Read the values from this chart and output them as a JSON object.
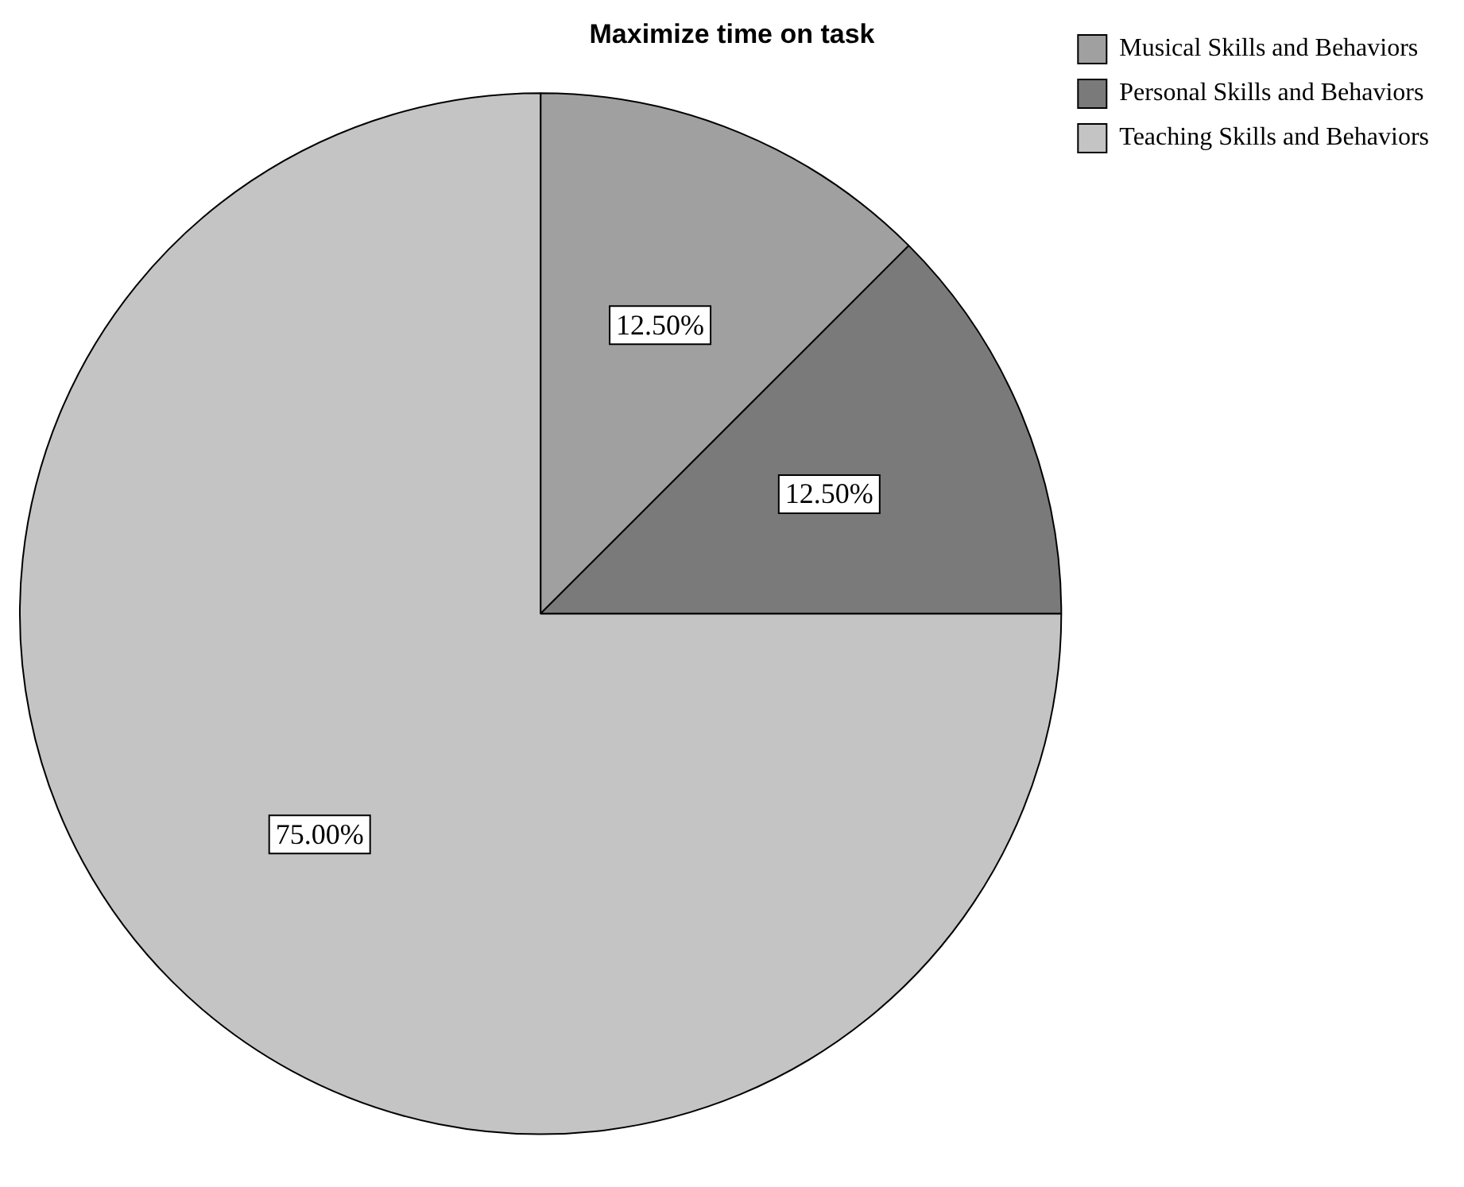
{
  "chart_data": {
    "type": "pie",
    "title": "Maximize time on task",
    "categories": [
      "Musical Skills and Behaviors",
      "Personal Skills and Behaviors",
      "Teaching Skills and Behaviors"
    ],
    "values": [
      12.5,
      12.5,
      75
    ],
    "colors": [
      "#a0a0a0",
      "#7a7a7a",
      "#c4c4c4"
    ],
    "value_labels": [
      "12.50%",
      "12.50%",
      "75.00%"
    ],
    "legend": "top right"
  }
}
